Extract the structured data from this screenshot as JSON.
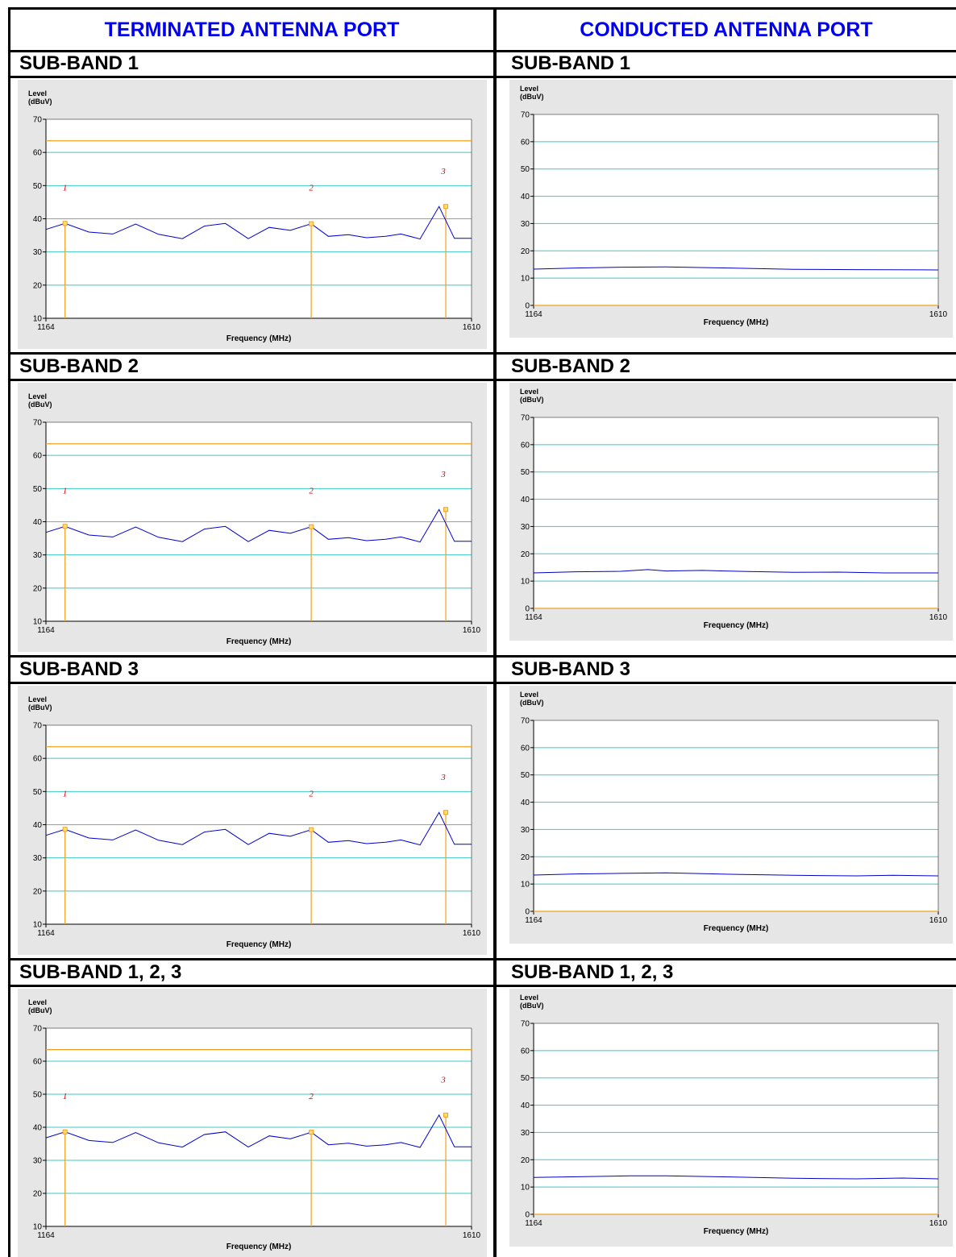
{
  "columns": [
    {
      "header": "TERMINATED ANTENNA PORT"
    },
    {
      "header": "CONDUCTED ANTENNA PORT"
    }
  ],
  "rows": [
    {
      "left_label": "SUB-BAND 1",
      "right_label": "SUB-BAND 1"
    },
    {
      "left_label": "SUB-BAND 2",
      "right_label": "SUB-BAND 2"
    },
    {
      "left_label": "SUB-BAND 3",
      "right_label": "SUB-BAND 3"
    },
    {
      "left_label": "SUB-BAND 1, 2, 3",
      "right_label": "SUB-BAND 1, 2, 3"
    }
  ],
  "colors": {
    "grid": "#3cc8c8",
    "limit": "#f0a020",
    "trace": "#0000cc",
    "marker_label": "#dd0000",
    "panel_bg": "#e6e6e6",
    "header_text": "#0000ee"
  },
  "chart_data": [
    {
      "id": "terminated-sub-band-1",
      "type": "line",
      "ylabel_line1": "Level",
      "ylabel_line2": "(dBuV)",
      "xlabel": "Frequency (MHz)",
      "xlim": [
        1164,
        1610
      ],
      "ylim": [
        10,
        70
      ],
      "xticks": [
        "1164",
        "1610"
      ],
      "yticks": [
        10,
        20,
        30,
        40,
        50,
        60,
        70
      ],
      "grid": true,
      "limit_line": 63.5,
      "series": [
        {
          "x": [
            1164,
            1184,
            1209,
            1234,
            1258,
            1282,
            1307,
            1330,
            1352,
            1376,
            1398,
            1420,
            1442,
            1460,
            1481,
            1500,
            1520,
            1536,
            1556,
            1576,
            1592,
            1610
          ],
          "y": [
            36.8,
            38.6,
            36.0,
            35.4,
            38.4,
            35.3,
            34.0,
            37.8,
            38.6,
            34.0,
            37.4,
            36.5,
            38.5,
            34.7,
            35.2,
            34.3,
            34.7,
            35.4,
            33.9,
            43.7,
            34.1,
            34.1
          ]
        }
      ],
      "markers": [
        {
          "label": "1",
          "x": 1184,
          "y": 38.6
        },
        {
          "label": "2",
          "x": 1442,
          "y": 38.5
        },
        {
          "label": "3",
          "x": 1583,
          "y": 43.7
        }
      ]
    },
    {
      "id": "conducted-sub-band-1",
      "type": "line",
      "ylabel_line1": "Level",
      "ylabel_line2": "(dBuV)",
      "xlabel": "Frequency (MHz)",
      "xlim": [
        1164,
        1610
      ],
      "ylim": [
        0,
        70
      ],
      "xticks": [
        "1164",
        "1610"
      ],
      "yticks": [
        0,
        10,
        20,
        30,
        40,
        50,
        60,
        70
      ],
      "grid": true,
      "limit_line": 0,
      "series": [
        {
          "x": [
            1164,
            1210,
            1260,
            1310,
            1380,
            1450,
            1520,
            1610
          ],
          "y": [
            13.3,
            13.7,
            14.0,
            14.1,
            13.7,
            13.2,
            13.1,
            13.0
          ]
        }
      ],
      "markers": []
    },
    {
      "id": "terminated-sub-band-2",
      "type": "line",
      "ylabel_line1": "Level",
      "ylabel_line2": "(dBuV)",
      "xlabel": "Frequency (MHz)",
      "xlim": [
        1164,
        1610
      ],
      "ylim": [
        10,
        70
      ],
      "xticks": [
        "1164",
        "1610"
      ],
      "yticks": [
        10,
        20,
        30,
        40,
        50,
        60,
        70
      ],
      "grid": true,
      "limit_line": 63.5,
      "series": [
        {
          "x": [
            1164,
            1184,
            1209,
            1234,
            1258,
            1282,
            1307,
            1330,
            1352,
            1376,
            1398,
            1420,
            1442,
            1460,
            1481,
            1500,
            1520,
            1536,
            1556,
            1576,
            1592,
            1610
          ],
          "y": [
            36.8,
            38.6,
            36.0,
            35.4,
            38.4,
            35.3,
            34.0,
            37.8,
            38.6,
            34.0,
            37.4,
            36.5,
            38.5,
            34.7,
            35.2,
            34.3,
            34.7,
            35.4,
            33.9,
            43.7,
            34.1,
            34.1
          ]
        }
      ],
      "markers": [
        {
          "label": "1",
          "x": 1184,
          "y": 38.6
        },
        {
          "label": "2",
          "x": 1442,
          "y": 38.5
        },
        {
          "label": "3",
          "x": 1583,
          "y": 43.7
        }
      ]
    },
    {
      "id": "conducted-sub-band-2",
      "type": "line",
      "ylabel_line1": "Level",
      "ylabel_line2": "(dBuV)",
      "xlabel": "Frequency (MHz)",
      "xlim": [
        1164,
        1610
      ],
      "ylim": [
        0,
        70
      ],
      "xticks": [
        "1164",
        "1610"
      ],
      "yticks": [
        0,
        10,
        20,
        30,
        40,
        50,
        60,
        70
      ],
      "grid": true,
      "limit_line": 0,
      "series": [
        {
          "x": [
            1164,
            1210,
            1260,
            1290,
            1310,
            1350,
            1400,
            1450,
            1500,
            1550,
            1610
          ],
          "y": [
            13.0,
            13.4,
            13.6,
            14.2,
            13.7,
            13.9,
            13.5,
            13.2,
            13.3,
            13.0,
            13.0
          ]
        }
      ],
      "markers": []
    },
    {
      "id": "terminated-sub-band-3",
      "type": "line",
      "ylabel_line1": "Level",
      "ylabel_line2": "(dBuV)",
      "xlabel": "Frequency (MHz)",
      "xlim": [
        1164,
        1610
      ],
      "ylim": [
        10,
        70
      ],
      "xticks": [
        "1164",
        "1610"
      ],
      "yticks": [
        10,
        20,
        30,
        40,
        50,
        60,
        70
      ],
      "grid": true,
      "limit_line": 63.5,
      "series": [
        {
          "x": [
            1164,
            1184,
            1209,
            1234,
            1258,
            1282,
            1307,
            1330,
            1352,
            1376,
            1398,
            1420,
            1442,
            1460,
            1481,
            1500,
            1520,
            1536,
            1556,
            1576,
            1592,
            1610
          ],
          "y": [
            36.8,
            38.6,
            36.0,
            35.4,
            38.4,
            35.3,
            34.0,
            37.8,
            38.6,
            34.0,
            37.4,
            36.5,
            38.5,
            34.7,
            35.2,
            34.3,
            34.7,
            35.4,
            33.9,
            43.7,
            34.1,
            34.1
          ]
        }
      ],
      "markers": [
        {
          "label": "1",
          "x": 1184,
          "y": 38.6
        },
        {
          "label": "2",
          "x": 1442,
          "y": 38.5
        },
        {
          "label": "3",
          "x": 1583,
          "y": 43.7
        }
      ]
    },
    {
      "id": "conducted-sub-band-3",
      "type": "line",
      "ylabel_line1": "Level",
      "ylabel_line2": "(dBuV)",
      "xlabel": "Frequency (MHz)",
      "xlim": [
        1164,
        1610
      ],
      "ylim": [
        0,
        70
      ],
      "xticks": [
        "1164",
        "1610"
      ],
      "yticks": [
        0,
        10,
        20,
        30,
        40,
        50,
        60,
        70
      ],
      "grid": true,
      "limit_line": 0,
      "series": [
        {
          "x": [
            1164,
            1210,
            1260,
            1310,
            1380,
            1450,
            1520,
            1560,
            1610
          ],
          "y": [
            13.3,
            13.7,
            13.9,
            14.1,
            13.6,
            13.2,
            13.0,
            13.2,
            13.0
          ]
        }
      ],
      "markers": []
    },
    {
      "id": "terminated-sub-band-1-2-3",
      "type": "line",
      "ylabel_line1": "Level",
      "ylabel_line2": "(dBuV)",
      "xlabel": "Frequency (MHz)",
      "xlim": [
        1164,
        1610
      ],
      "ylim": [
        10,
        70
      ],
      "xticks": [
        "1164",
        "1610"
      ],
      "yticks": [
        10,
        20,
        30,
        40,
        50,
        60,
        70
      ],
      "grid": true,
      "limit_line": 63.5,
      "series": [
        {
          "x": [
            1164,
            1184,
            1209,
            1234,
            1258,
            1282,
            1307,
            1330,
            1352,
            1376,
            1398,
            1420,
            1442,
            1460,
            1481,
            1500,
            1520,
            1536,
            1556,
            1576,
            1592,
            1610
          ],
          "y": [
            36.8,
            38.6,
            36.0,
            35.4,
            38.4,
            35.3,
            34.0,
            37.8,
            38.6,
            34.0,
            37.4,
            36.5,
            38.5,
            34.7,
            35.2,
            34.3,
            34.7,
            35.4,
            33.9,
            43.7,
            34.1,
            34.1
          ]
        }
      ],
      "markers": [
        {
          "label": "1",
          "x": 1184,
          "y": 38.6
        },
        {
          "label": "2",
          "x": 1442,
          "y": 38.5
        },
        {
          "label": "3",
          "x": 1583,
          "y": 43.7
        }
      ]
    },
    {
      "id": "conducted-sub-band-1-2-3",
      "type": "line",
      "ylabel_line1": "Level",
      "ylabel_line2": "(dBuV)",
      "xlabel": "Frequency (MHz)",
      "xlim": [
        1164,
        1610
      ],
      "ylim": [
        0,
        70
      ],
      "xticks": [
        "1164",
        "1610"
      ],
      "yticks": [
        0,
        10,
        20,
        30,
        40,
        50,
        60,
        70
      ],
      "grid": true,
      "limit_line": 0,
      "series": [
        {
          "x": [
            1164,
            1220,
            1270,
            1310,
            1380,
            1450,
            1520,
            1570,
            1610
          ],
          "y": [
            13.5,
            13.8,
            14.1,
            14.1,
            13.7,
            13.2,
            13.0,
            13.3,
            13.0
          ]
        }
      ],
      "markers": []
    }
  ]
}
